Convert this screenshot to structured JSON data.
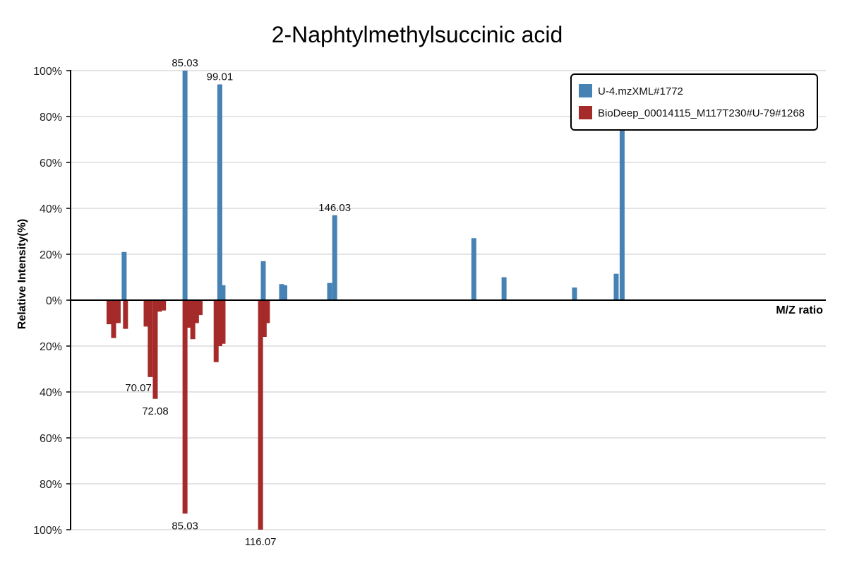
{
  "chart_data": {
    "type": "bar",
    "title": "2-Naphtylmethylsuccinic acid",
    "xlabel": "M/Z ratio",
    "ylabel": "Relative Intensity(%)",
    "ylim": [
      -100,
      100
    ],
    "xlim": [
      50,
      215
    ],
    "yticks": [
      {
        "value": 100,
        "label": "100%"
      },
      {
        "value": 80,
        "label": "80%"
      },
      {
        "value": 60,
        "label": "60%"
      },
      {
        "value": 40,
        "label": "40%"
      },
      {
        "value": 20,
        "label": "20%"
      },
      {
        "value": 0,
        "label": "0%"
      },
      {
        "value": -20,
        "label": "20%"
      },
      {
        "value": -40,
        "label": "40%"
      },
      {
        "value": -60,
        "label": "60%"
      },
      {
        "value": -80,
        "label": "80%"
      },
      {
        "value": -100,
        "label": "100%"
      }
    ],
    "colors": {
      "query": "#4682b4",
      "reference": "#a52a2a"
    },
    "series": [
      {
        "name": "U-4.mzXML#1772",
        "color": "#4682b4",
        "peaks": [
          {
            "mz": 61.7,
            "intensity": 21
          },
          {
            "mz": 75.0,
            "intensity": 100,
            "label": "85.03"
          },
          {
            "mz": 82.6,
            "intensity": 94,
            "label": "99.01"
          },
          {
            "mz": 83.3,
            "intensity": 6.5
          },
          {
            "mz": 92.1,
            "intensity": 17
          },
          {
            "mz": 96.1,
            "intensity": 7
          },
          {
            "mz": 96.8,
            "intensity": 6.5
          },
          {
            "mz": 106.6,
            "intensity": 7.5
          },
          {
            "mz": 107.7,
            "intensity": 37,
            "label": "146.03"
          },
          {
            "mz": 138.1,
            "intensity": 27
          },
          {
            "mz": 144.7,
            "intensity": 10
          },
          {
            "mz": 160.1,
            "intensity": 5.5
          },
          {
            "mz": 169.2,
            "intensity": 11.5
          },
          {
            "mz": 170.5,
            "intensity": 75
          }
        ]
      },
      {
        "name": "BioDeep_00014115_M117T230#U-79#1268",
        "color": "#a52a2a",
        "peaks": [
          {
            "mz": 58.4,
            "intensity": 10.5
          },
          {
            "mz": 59.4,
            "intensity": 16.5
          },
          {
            "mz": 60.4,
            "intensity": 10
          },
          {
            "mz": 62.0,
            "intensity": 12.5
          },
          {
            "mz": 66.5,
            "intensity": 11.5
          },
          {
            "mz": 67.4,
            "intensity": 33.5,
            "label": "70.07",
            "labelPos": "left"
          },
          {
            "mz": 68.5,
            "intensity": 43,
            "label": "72.08",
            "labelPos": "below"
          },
          {
            "mz": 69.4,
            "intensity": 5
          },
          {
            "mz": 70.3,
            "intensity": 4.5
          },
          {
            "mz": 75.0,
            "intensity": 93,
            "label": "85.03",
            "labelPos": "below"
          },
          {
            "mz": 76.0,
            "intensity": 12
          },
          {
            "mz": 76.7,
            "intensity": 17
          },
          {
            "mz": 77.5,
            "intensity": 10
          },
          {
            "mz": 78.3,
            "intensity": 6.5
          },
          {
            "mz": 81.8,
            "intensity": 27
          },
          {
            "mz": 82.6,
            "intensity": 20
          },
          {
            "mz": 83.3,
            "intensity": 19
          },
          {
            "mz": 91.5,
            "intensity": 100,
            "label": "116.07",
            "labelPos": "below"
          },
          {
            "mz": 92.3,
            "intensity": 16
          },
          {
            "mz": 93.0,
            "intensity": 10
          }
        ]
      }
    ],
    "legend": {
      "position": "top-right"
    }
  }
}
